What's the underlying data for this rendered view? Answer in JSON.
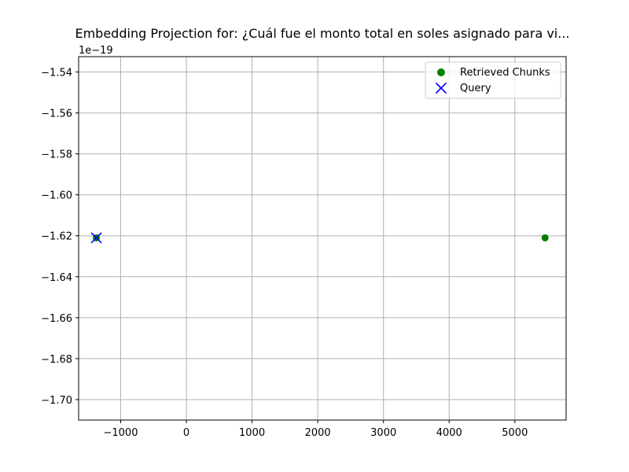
{
  "chart_data": {
    "type": "scatter",
    "title": "Embedding Projection for: ¿Cuál fue el monto total en soles asignado para vi...",
    "offset_label": "1e−19",
    "xlim": [
      -1640,
      5780
    ],
    "ylim": [
      -1.71,
      -1.5325
    ],
    "x_ticks": [
      -1000,
      0,
      1000,
      2000,
      3000,
      4000,
      5000
    ],
    "x_tick_labels": [
      "−1000",
      "0",
      "1000",
      "2000",
      "3000",
      "4000",
      "5000"
    ],
    "y_ticks": [
      -1.54,
      -1.56,
      -1.58,
      -1.6,
      -1.62,
      -1.64,
      -1.66,
      -1.68,
      -1.7
    ],
    "y_tick_labels": [
      "−1.54",
      "−1.56",
      "−1.58",
      "−1.60",
      "−1.62",
      "−1.64",
      "−1.66",
      "−1.68",
      "−1.70"
    ],
    "grid": true,
    "legend_position": "top-right",
    "series": [
      {
        "name": "Retrieved Chunks",
        "marker": "circle",
        "color": "#008000",
        "points": [
          {
            "x": -1370,
            "y": -1.621
          },
          {
            "x": 5460,
            "y": -1.621
          }
        ]
      },
      {
        "name": "Query",
        "marker": "x",
        "color": "#0000ff",
        "points": [
          {
            "x": -1370,
            "y": -1.621
          }
        ]
      }
    ]
  }
}
